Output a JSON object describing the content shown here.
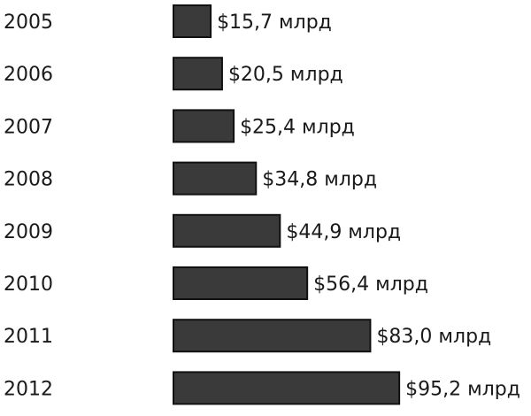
{
  "chart_data": {
    "type": "bar",
    "orientation": "horizontal",
    "categories": [
      "2005",
      "2006",
      "2007",
      "2008",
      "2009",
      "2010",
      "2011",
      "2012"
    ],
    "values": [
      15.7,
      20.5,
      25.4,
      34.8,
      44.9,
      56.4,
      83.0,
      95.2
    ],
    "value_labels": [
      "$15,7 млрд",
      "$20,5 млрд",
      "$25,4 млрд",
      "$34,8 млрд",
      "$44,9 млрд",
      "$56,4 млрд",
      "$83,0 млрд",
      "$95,2 млрд"
    ],
    "title": "",
    "xlabel": "",
    "ylabel": "",
    "xlim": [
      0,
      95.2
    ],
    "grid": false,
    "legend": "none",
    "bar_color": "#3a3a3a"
  }
}
